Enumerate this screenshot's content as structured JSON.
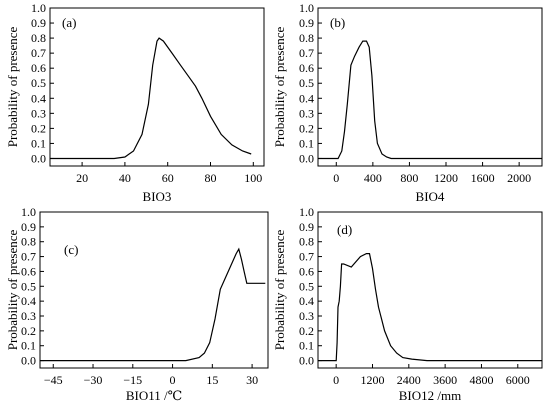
{
  "chart_data": [
    {
      "type": "line",
      "panel_label": "(a)",
      "xlabel": "BIO3",
      "ylabel": "Probability of presence",
      "xlim": [
        5,
        105
      ],
      "ylim": [
        -0.05,
        1.0
      ],
      "xticks": [
        20,
        40,
        60,
        80,
        100
      ],
      "yticks": [
        0.0,
        0.1,
        0.2,
        0.3,
        0.4,
        0.5,
        0.6,
        0.7,
        0.8,
        0.9,
        1.0
      ],
      "grid": false,
      "series": [
        {
          "x": [
            5,
            35,
            40,
            44,
            48,
            51,
            53,
            55,
            56,
            58,
            62,
            66,
            70,
            73,
            76,
            80,
            85,
            90,
            95,
            99
          ],
          "y": [
            0.0,
            0.0,
            0.01,
            0.05,
            0.16,
            0.36,
            0.62,
            0.78,
            0.8,
            0.78,
            0.7,
            0.62,
            0.54,
            0.48,
            0.4,
            0.28,
            0.16,
            0.09,
            0.05,
            0.03
          ]
        }
      ]
    },
    {
      "type": "line",
      "panel_label": "(b)",
      "xlabel": "BIO4",
      "ylabel": "Probability of presence",
      "xlim": [
        -200,
        2250
      ],
      "ylim": [
        -0.05,
        1.0
      ],
      "xticks": [
        0,
        400,
        800,
        1200,
        1600,
        2000
      ],
      "yticks": [
        0.0,
        0.1,
        0.2,
        0.3,
        0.4,
        0.5,
        0.6,
        0.7,
        0.8,
        0.9,
        1.0
      ],
      "grid": false,
      "series": [
        {
          "x": [
            -200,
            20,
            60,
            90,
            120,
            160,
            200,
            250,
            290,
            330,
            360,
            390,
            420,
            450,
            500,
            550,
            600,
            700,
            2250
          ],
          "y": [
            0.0,
            0.0,
            0.05,
            0.18,
            0.36,
            0.62,
            0.68,
            0.74,
            0.78,
            0.78,
            0.74,
            0.55,
            0.25,
            0.1,
            0.03,
            0.01,
            0.0,
            0.0,
            0.0
          ]
        }
      ]
    },
    {
      "type": "line",
      "panel_label": "(c)",
      "xlabel": "BIO11 /℃",
      "ylabel": "Probability of presence",
      "xlim": [
        -50,
        36
      ],
      "ylim": [
        -0.05,
        1.0
      ],
      "xticks": [
        -45,
        -30,
        -15,
        0,
        15,
        30
      ],
      "yticks": [
        0.0,
        0.1,
        0.2,
        0.3,
        0.4,
        0.5,
        0.6,
        0.7,
        0.8,
        0.9,
        1.0
      ],
      "grid": false,
      "series": [
        {
          "x": [
            -50,
            5,
            10,
            12,
            14,
            16,
            18,
            20,
            22,
            24,
            25,
            26,
            27,
            28,
            35
          ],
          "y": [
            0.0,
            0.0,
            0.02,
            0.05,
            0.12,
            0.28,
            0.48,
            0.56,
            0.64,
            0.72,
            0.75,
            0.68,
            0.6,
            0.52,
            0.52
          ]
        }
      ]
    },
    {
      "type": "line",
      "panel_label": "(d)",
      "xlabel": "BIO12 /mm",
      "ylabel": "Probability of presence",
      "xlim": [
        -600,
        6800
      ],
      "ylim": [
        -0.05,
        1.0
      ],
      "xticks": [
        0,
        1200,
        2400,
        3600,
        4800,
        6000
      ],
      "yticks": [
        0.0,
        0.1,
        0.2,
        0.3,
        0.4,
        0.5,
        0.6,
        0.7,
        0.8,
        0.9,
        1.0
      ],
      "grid": false,
      "series": [
        {
          "x": [
            -600,
            0,
            30,
            60,
            100,
            140,
            180,
            250,
            500,
            800,
            1000,
            1100,
            1200,
            1300,
            1400,
            1600,
            1800,
            2000,
            2200,
            2500,
            3000,
            6800
          ],
          "y": [
            0.0,
            0.0,
            0.12,
            0.36,
            0.4,
            0.5,
            0.65,
            0.65,
            0.63,
            0.7,
            0.72,
            0.72,
            0.62,
            0.48,
            0.36,
            0.2,
            0.1,
            0.05,
            0.02,
            0.01,
            0.0,
            0.0
          ]
        }
      ]
    }
  ]
}
